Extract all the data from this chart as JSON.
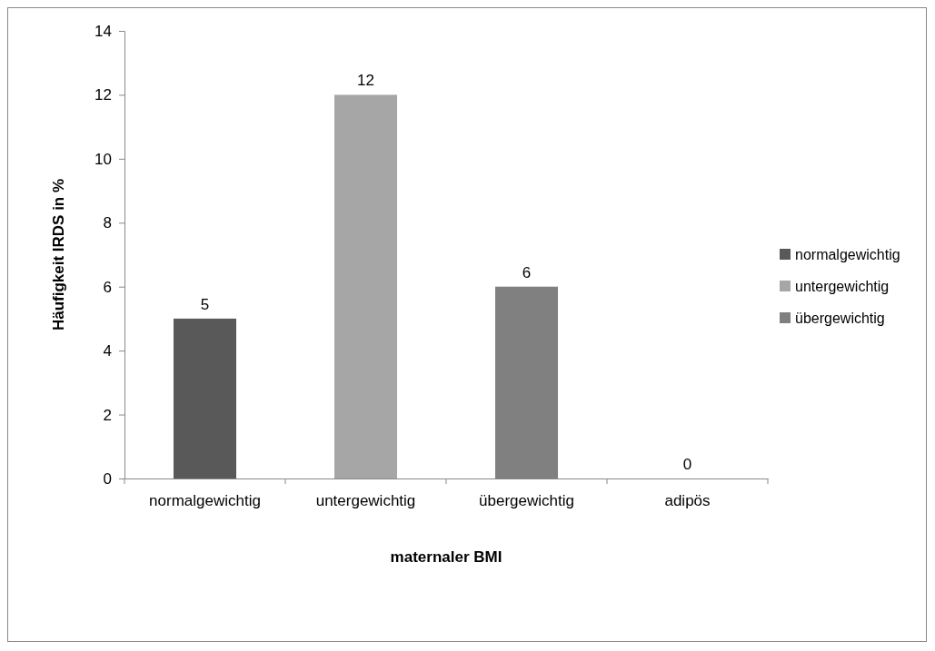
{
  "chart_data": {
    "type": "bar",
    "xlabel": "maternaler BMI",
    "ylabel": "Häufigkeit IRDS in %",
    "categories": [
      "normalgewichtig",
      "untergewichtig",
      "übergewichtig",
      "adipös"
    ],
    "series": [
      {
        "name": "normalgewichtig",
        "color": "#595959",
        "values": [
          5,
          null,
          null,
          null
        ]
      },
      {
        "name": "untergewichtig",
        "color": "#a6a6a6",
        "values": [
          null,
          12,
          null,
          null
        ]
      },
      {
        "name": "übergewichtig",
        "color": "#808080",
        "values": [
          null,
          null,
          6,
          null
        ]
      },
      {
        "color": "#4d4d4d",
        "values": [
          null,
          null,
          null,
          0
        ]
      }
    ],
    "ylim": [
      0,
      14
    ],
    "yticks": [
      0,
      2,
      4,
      6,
      8,
      10,
      12,
      14
    ],
    "grid": false,
    "legend": "right",
    "data_labels": true
  }
}
